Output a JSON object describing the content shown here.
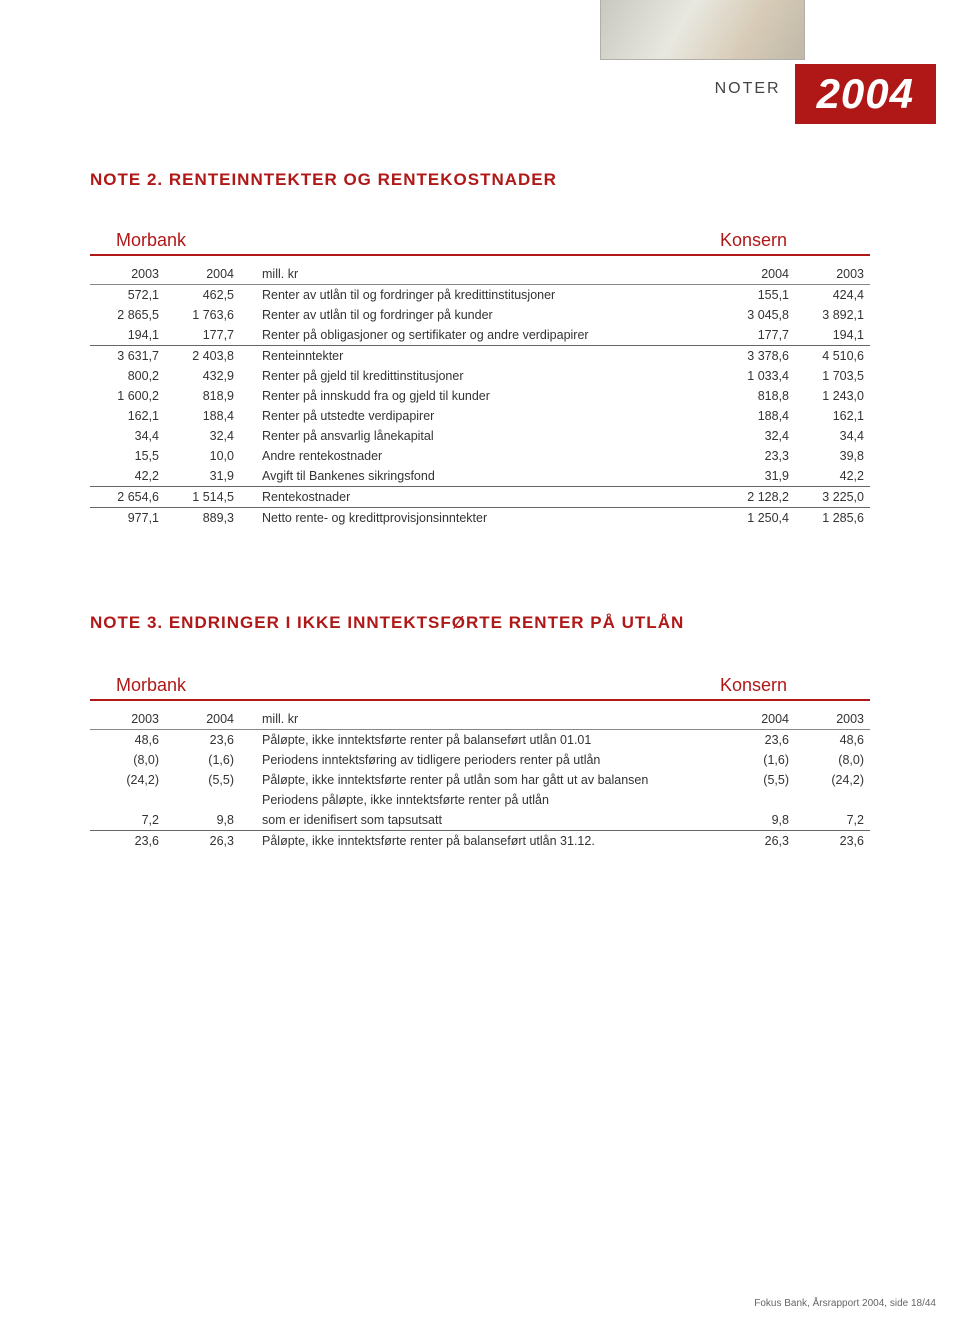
{
  "header": {
    "noter_label": "NOTER",
    "year": "2004",
    "accent_color": "#b01818"
  },
  "note2": {
    "title": "NOTE 2. RENTEINNTEKTER OG RENTEKOSTNADER",
    "left_label": "Morbank",
    "right_label": "Konsern",
    "columns": {
      "m2003": "2003",
      "m2004": "2004",
      "desc": "mill. kr",
      "k2004": "2004",
      "k2003": "2003"
    },
    "rows": [
      {
        "m2003": "572,1",
        "m2004": "462,5",
        "desc": "Renter av utlån til og fordringer på kredittinstitusjoner",
        "k2004": "155,1",
        "k2003": "424,4"
      },
      {
        "m2003": "2 865,5",
        "m2004": "1 763,6",
        "desc": "Renter av utlån til og fordringer på kunder",
        "k2004": "3 045,8",
        "k2003": "3 892,1"
      },
      {
        "m2003": "194,1",
        "m2004": "177,7",
        "desc": "Renter på obligasjoner og sertifikater og andre verdipapirer",
        "k2004": "177,7",
        "k2003": "194,1"
      },
      {
        "sum": true,
        "m2003": "3 631,7",
        "m2004": "2 403,8",
        "desc": "Renteinntekter",
        "k2004": "3 378,6",
        "k2003": "4 510,6"
      },
      {
        "m2003": "800,2",
        "m2004": "432,9",
        "desc": "Renter på gjeld til kredittinstitusjoner",
        "k2004": "1 033,4",
        "k2003": "1 703,5"
      },
      {
        "m2003": "1 600,2",
        "m2004": "818,9",
        "desc": "Renter på innskudd fra og gjeld til kunder",
        "k2004": "818,8",
        "k2003": "1 243,0"
      },
      {
        "m2003": "162,1",
        "m2004": "188,4",
        "desc": "Renter på utstedte verdipapirer",
        "k2004": "188,4",
        "k2003": "162,1"
      },
      {
        "m2003": "34,4",
        "m2004": "32,4",
        "desc": "Renter på ansvarlig lånekapital",
        "k2004": "32,4",
        "k2003": "34,4"
      },
      {
        "m2003": "15,5",
        "m2004": "10,0",
        "desc": "Andre rentekostnader",
        "k2004": "23,3",
        "k2003": "39,8"
      },
      {
        "m2003": "42,2",
        "m2004": "31,9",
        "desc": "Avgift til Bankenes sikringsfond",
        "k2004": "31,9",
        "k2003": "42,2"
      },
      {
        "sum": true,
        "m2003": "2 654,6",
        "m2004": "1 514,5",
        "desc": "Rentekostnader",
        "k2004": "2 128,2",
        "k2003": "3 225,0"
      },
      {
        "sum": true,
        "m2003": "977,1",
        "m2004": "889,3",
        "desc": "Netto rente- og kredittprovisjonsinntekter",
        "k2004": "1 250,4",
        "k2003": "1 285,6"
      }
    ]
  },
  "note3": {
    "title": "NOTE 3. ENDRINGER I IKKE INNTEKTSFØRTE RENTER PÅ UTLÅN",
    "left_label": "Morbank",
    "right_label": "Konsern",
    "columns": {
      "m2003": "2003",
      "m2004": "2004",
      "desc": "mill. kr",
      "k2004": "2004",
      "k2003": "2003"
    },
    "rows": [
      {
        "m2003": "48,6",
        "m2004": "23,6",
        "desc": "Påløpte, ikke inntektsførte renter på balanseført utlån 01.01",
        "k2004": "23,6",
        "k2003": "48,6"
      },
      {
        "m2003": "(8,0)",
        "m2004": "(1,6)",
        "desc": "Periodens inntektsføring av tidligere perioders renter på utlån",
        "k2004": "(1,6)",
        "k2003": "(8,0)"
      },
      {
        "m2003": "(24,2)",
        "m2004": "(5,5)",
        "desc": "Påløpte, ikke inntektsførte renter på utlån som har gått ut av balansen",
        "k2004": "(5,5)",
        "k2003": "(24,2)"
      },
      {
        "m2003": "",
        "m2004": "",
        "desc": "Periodens påløpte, ikke inntektsførte renter på utlån",
        "k2004": "",
        "k2003": ""
      },
      {
        "m2003": "7,2",
        "m2004": "9,8",
        "desc": "som er idenifisert som tapsutsatt",
        "k2004": "9,8",
        "k2003": "7,2"
      },
      {
        "sum": true,
        "m2003": "23,6",
        "m2004": "26,3",
        "desc": "Påløpte, ikke inntektsførte renter på balanseført utlån 31.12.",
        "k2004": "26,3",
        "k2003": "23,6"
      }
    ]
  },
  "footer": {
    "text": "Fokus Bank, Årsrapport 2004, side 18/44"
  }
}
